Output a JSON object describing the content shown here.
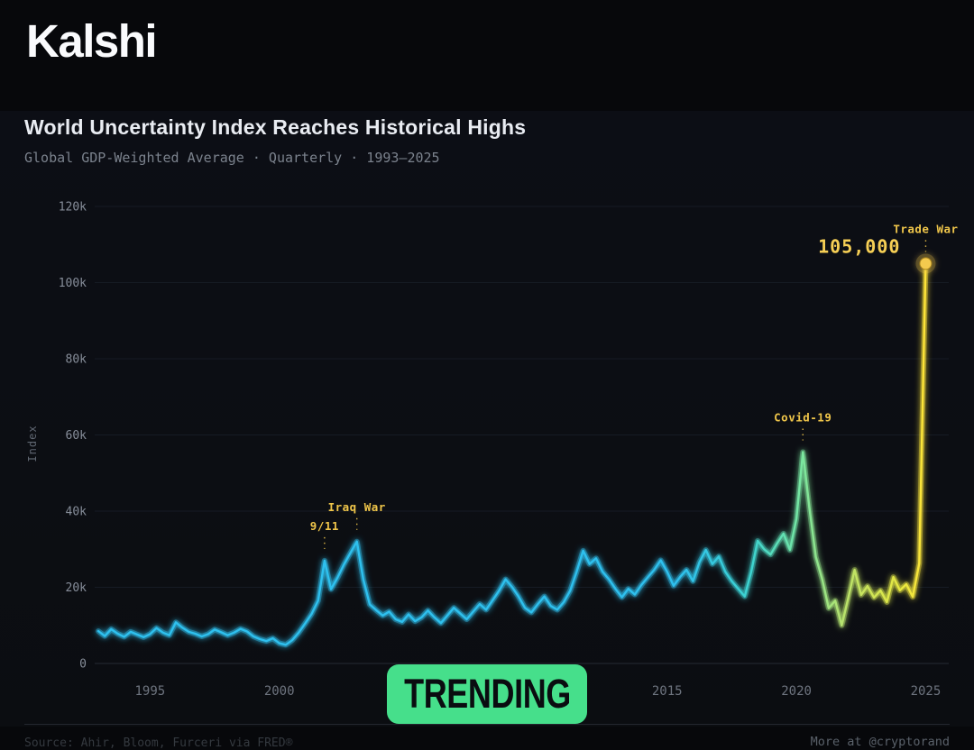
{
  "header": {
    "logo": "Kalshi",
    "title": "World Uncertainty Index Reaches Historical Highs",
    "subtitle": "Global GDP-Weighted Average · Quarterly · 1993–2025"
  },
  "badge": {
    "label": "TRENDING"
  },
  "footer": {
    "source": "Source: Ahir, Bloom, Furceri via FRED®",
    "credit": "More at @cryptorand"
  },
  "colors": {
    "background": "#07080b",
    "accent_yellow": "#f0c64a",
    "peak_yellow": "#f6cf55",
    "line_cyan": "#2ec0ee",
    "badge_green": "#46df8b",
    "dot_fill": "#f4ca4e"
  },
  "chart_data": {
    "type": "line",
    "title": "World Uncertainty Index",
    "xlabel": "",
    "ylabel": "Index",
    "xlim": [
      1993,
      2025.5
    ],
    "ylim": [
      0,
      120000
    ],
    "grid": true,
    "legend": false,
    "x_start": 1993,
    "x_step": 0.25,
    "values": [
      8500,
      7200,
      9000,
      7800,
      7000,
      8300,
      7600,
      6900,
      7700,
      9300,
      8100,
      7400,
      10800,
      9400,
      8300,
      7800,
      7100,
      7700,
      8900,
      8200,
      7400,
      8100,
      9100,
      8400,
      7100,
      6400,
      5900,
      6600,
      5300,
      4900,
      6100,
      8100,
      10500,
      13000,
      16500,
      27000,
      19500,
      22500,
      26000,
      29000,
      32000,
      22000,
      15500,
      14000,
      12600,
      13600,
      11600,
      10900,
      12900,
      11100,
      12100,
      13900,
      12100,
      10600,
      12600,
      14600,
      13100,
      11600,
      13600,
      15600,
      14100,
      16600,
      19100,
      22100,
      20100,
      17600,
      14600,
      13400,
      15600,
      17600,
      15100,
      14100,
      16100,
      19100,
      24100,
      29600,
      26100,
      27600,
      24100,
      22100,
      19600,
      17400,
      19600,
      18100,
      20600,
      22600,
      24600,
      27100,
      24100,
      20400,
      22700,
      24600,
      21600,
      26600,
      29800,
      26100,
      28100,
      24100,
      21600,
      19600,
      17600,
      24000,
      32200,
      30000,
      28600,
      31500,
      34100,
      29800,
      38000,
      55500,
      41000,
      28000,
      22000,
      14500,
      16500,
      10000,
      17000,
      24600,
      18000,
      20300,
      17300,
      19200,
      16100,
      22700,
      19200,
      20800,
      17500,
      26300,
      105000
    ],
    "y_ticks": [
      {
        "value": 0,
        "label": "0"
      },
      {
        "value": 20000,
        "label": "20k"
      },
      {
        "value": 40000,
        "label": "40k"
      },
      {
        "value": 60000,
        "label": "60k"
      },
      {
        "value": 80000,
        "label": "80k"
      },
      {
        "value": 100000,
        "label": "100k"
      },
      {
        "value": 120000,
        "label": "120k"
      }
    ],
    "x_ticks": [
      {
        "value": 1995,
        "label": "1995"
      },
      {
        "value": 2000,
        "label": "2000"
      },
      {
        "value": 2005,
        "label": "2005"
      },
      {
        "value": 2010,
        "label": "2010"
      },
      {
        "value": 2015,
        "label": "2015"
      },
      {
        "value": 2020,
        "label": "2020"
      },
      {
        "value": 2025,
        "label": "2025"
      }
    ],
    "annotations": [
      {
        "label": "9/11",
        "year": 2001.75,
        "value": 27000
      },
      {
        "label": "Iraq War",
        "year": 2003.0,
        "value": 32000
      },
      {
        "label": "Covid-19",
        "year": 2020.25,
        "value": 55500
      },
      {
        "label": "Trade War",
        "year": 2025.0,
        "value": 105000
      }
    ],
    "peak_label": "105,000",
    "line_gradient": [
      {
        "offset": 0.0,
        "color": "#2ec0ee"
      },
      {
        "offset": 0.7,
        "color": "#2ec0ee"
      },
      {
        "offset": 0.79,
        "color": "#3ed4cf"
      },
      {
        "offset": 0.845,
        "color": "#74e6a4"
      },
      {
        "offset": 0.9,
        "color": "#b7e26c"
      },
      {
        "offset": 0.97,
        "color": "#e8e83f"
      },
      {
        "offset": 1.0,
        "color": "#ffe438"
      }
    ]
  }
}
